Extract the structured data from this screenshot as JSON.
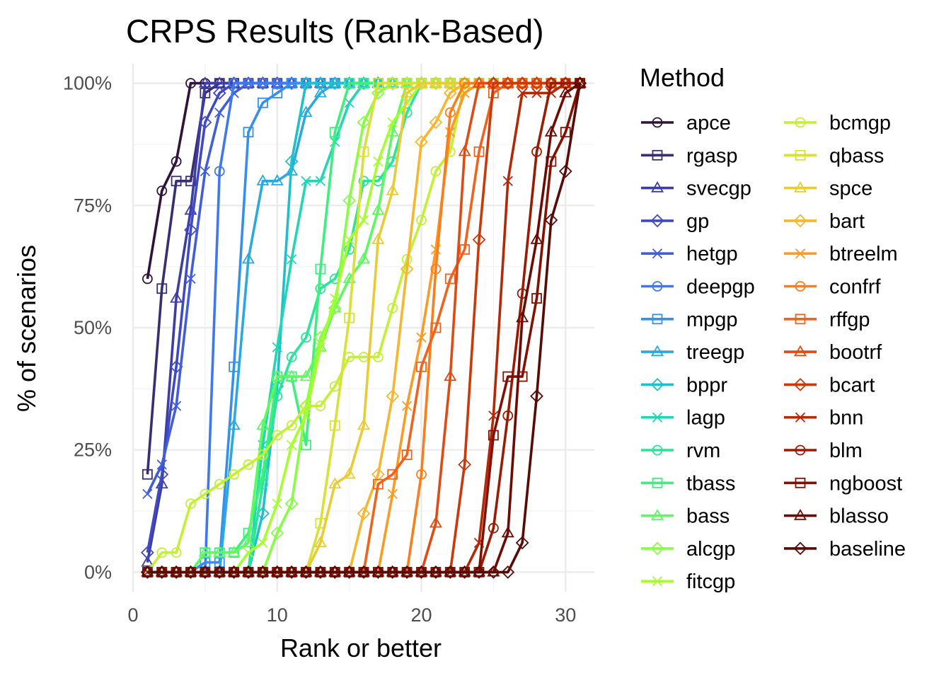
{
  "chart_data": {
    "type": "line",
    "title": "CRPS Results (Rank-Based)",
    "xlabel": "Rank or better",
    "ylabel": "% of scenarios",
    "xlim": [
      0,
      32
    ],
    "ylim": [
      -4,
      104
    ],
    "x_ticks": [
      0,
      10,
      20,
      30
    ],
    "x_tick_labels": [
      "0",
      "10",
      "20",
      "30"
    ],
    "y_ticks": [
      0,
      25,
      50,
      75,
      100
    ],
    "y_tick_labels": [
      "0%",
      "25%",
      "50%",
      "75%",
      "100%"
    ],
    "grid": true,
    "legend_title": "Method",
    "legend_position": "right",
    "x": [
      1,
      2,
      3,
      4,
      5,
      6,
      7,
      8,
      9,
      10,
      11,
      12,
      13,
      14,
      15,
      16,
      17,
      18,
      19,
      20,
      21,
      22,
      23,
      24,
      25,
      26,
      27,
      28,
      29,
      30,
      31
    ],
    "series": [
      {
        "name": "apce",
        "color": "#30123b",
        "marker": "circle",
        "values": [
          60,
          78,
          84,
          100,
          100,
          100,
          100,
          100,
          100,
          100,
          100,
          100,
          100,
          100,
          100,
          100,
          100,
          100,
          100,
          100,
          100,
          100,
          100,
          100,
          100,
          100,
          100,
          100,
          100,
          100,
          100
        ]
      },
      {
        "name": "rgasp",
        "color": "#382f73",
        "marker": "square",
        "values": [
          20,
          58,
          80,
          80,
          98,
          100,
          100,
          100,
          100,
          100,
          100,
          100,
          100,
          100,
          100,
          100,
          100,
          100,
          100,
          100,
          100,
          100,
          100,
          100,
          100,
          100,
          100,
          100,
          100,
          100,
          100
        ]
      },
      {
        "name": "svecgp",
        "color": "#3e3da5",
        "marker": "triangle",
        "values": [
          2,
          18,
          56,
          74,
          100,
          100,
          100,
          100,
          100,
          100,
          100,
          100,
          100,
          100,
          100,
          100,
          100,
          100,
          100,
          100,
          100,
          100,
          100,
          100,
          100,
          100,
          100,
          100,
          100,
          100,
          100
        ]
      },
      {
        "name": "gp",
        "color": "#3f49c3",
        "marker": "diamond",
        "values": [
          4,
          20,
          42,
          70,
          92,
          98,
          100,
          100,
          100,
          100,
          100,
          100,
          100,
          100,
          100,
          100,
          100,
          100,
          100,
          100,
          100,
          100,
          100,
          100,
          100,
          100,
          100,
          100,
          100,
          100,
          100
        ]
      },
      {
        "name": "hetgp",
        "color": "#3f5ddd",
        "marker": "x",
        "values": [
          16,
          22,
          34,
          60,
          82,
          94,
          98,
          100,
          100,
          100,
          100,
          100,
          100,
          100,
          100,
          100,
          100,
          100,
          100,
          100,
          100,
          100,
          100,
          100,
          100,
          100,
          100,
          100,
          100,
          100,
          100
        ]
      },
      {
        "name": "deepgp",
        "color": "#3e78ee",
        "marker": "circle",
        "values": [
          0,
          0,
          0,
          0,
          0,
          82,
          100,
          100,
          100,
          100,
          100,
          100,
          100,
          100,
          100,
          100,
          100,
          100,
          100,
          100,
          100,
          100,
          100,
          100,
          100,
          100,
          100,
          100,
          100,
          100,
          100
        ]
      },
      {
        "name": "mpgp",
        "color": "#348ff1",
        "marker": "square",
        "values": [
          0,
          0,
          0,
          0,
          2,
          2,
          42,
          90,
          96,
          98,
          100,
          100,
          100,
          100,
          100,
          100,
          100,
          100,
          100,
          100,
          100,
          100,
          100,
          100,
          100,
          100,
          100,
          100,
          100,
          100,
          100
        ]
      },
      {
        "name": "treegp",
        "color": "#28a9e0",
        "marker": "triangle",
        "values": [
          0,
          0,
          0,
          0,
          0,
          0,
          30,
          64,
          80,
          80,
          82,
          94,
          98,
          100,
          100,
          100,
          100,
          100,
          100,
          100,
          100,
          100,
          100,
          100,
          100,
          100,
          100,
          100,
          100,
          100,
          100
        ]
      },
      {
        "name": "bppr",
        "color": "#1fc0cb",
        "marker": "diamond",
        "values": [
          0,
          0,
          0,
          0,
          0,
          0,
          0,
          0,
          12,
          38,
          84,
          100,
          100,
          100,
          100,
          100,
          100,
          100,
          100,
          100,
          100,
          100,
          100,
          100,
          100,
          100,
          100,
          100,
          100,
          100,
          100
        ]
      },
      {
        "name": "lagp",
        "color": "#20d6b4",
        "marker": "x",
        "values": [
          0,
          0,
          0,
          0,
          0,
          0,
          0,
          0,
          26,
          46,
          64,
          80,
          80,
          88,
          96,
          100,
          100,
          100,
          100,
          100,
          100,
          100,
          100,
          100,
          100,
          100,
          100,
          100,
          100,
          100,
          100
        ]
      },
      {
        "name": "rvm",
        "color": "#26e69a",
        "marker": "circle",
        "values": [
          0,
          0,
          0,
          0,
          0,
          0,
          0,
          0,
          18,
          36,
          44,
          48,
          58,
          60,
          66,
          80,
          80,
          84,
          94,
          100,
          100,
          100,
          100,
          100,
          100,
          100,
          100,
          100,
          100,
          100,
          100
        ]
      },
      {
        "name": "tbass",
        "color": "#3cf07e",
        "marker": "square",
        "values": [
          0,
          0,
          0,
          0,
          4,
          4,
          4,
          8,
          20,
          40,
          40,
          26,
          62,
          90,
          100,
          100,
          100,
          100,
          100,
          100,
          100,
          100,
          100,
          100,
          100,
          100,
          100,
          100,
          100,
          100,
          100
        ]
      },
      {
        "name": "bass",
        "color": "#5cf95f",
        "marker": "triangle",
        "values": [
          0,
          0,
          0,
          0,
          4,
          4,
          4,
          6,
          30,
          40,
          40,
          40,
          46,
          54,
          60,
          64,
          74,
          90,
          100,
          100,
          100,
          100,
          100,
          100,
          100,
          100,
          100,
          100,
          100,
          100,
          100
        ]
      },
      {
        "name": "alcgp",
        "color": "#86fe43",
        "marker": "diamond",
        "values": [
          0,
          0,
          0,
          0,
          0,
          0,
          0,
          0,
          0,
          8,
          14,
          34,
          48,
          54,
          76,
          92,
          98,
          100,
          100,
          100,
          100,
          100,
          100,
          100,
          100,
          100,
          100,
          100,
          100,
          100,
          100
        ]
      },
      {
        "name": "fitcgp",
        "color": "#a6fd30",
        "marker": "x",
        "values": [
          0,
          0,
          0,
          0,
          0,
          0,
          0,
          4,
          6,
          14,
          26,
          32,
          46,
          56,
          68,
          72,
          84,
          92,
          96,
          100,
          100,
          100,
          100,
          100,
          100,
          100,
          100,
          100,
          100,
          100,
          100
        ]
      },
      {
        "name": "bcmgp",
        "color": "#c2f134",
        "marker": "circle",
        "values": [
          0,
          4,
          4,
          14,
          16,
          18,
          20,
          22,
          24,
          28,
          30,
          34,
          34,
          38,
          44,
          44,
          44,
          54,
          64,
          72,
          82,
          86,
          100,
          100,
          100,
          100,
          100,
          100,
          100,
          100,
          100
        ]
      },
      {
        "name": "qbass",
        "color": "#d8e136",
        "marker": "square",
        "values": [
          0,
          0,
          0,
          0,
          0,
          0,
          0,
          0,
          0,
          0,
          0,
          0,
          10,
          30,
          52,
          86,
          100,
          100,
          100,
          100,
          100,
          100,
          100,
          100,
          100,
          100,
          100,
          100,
          100,
          100,
          100
        ]
      },
      {
        "name": "spce",
        "color": "#e9cc35",
        "marker": "triangle",
        "values": [
          0,
          0,
          0,
          0,
          0,
          0,
          0,
          0,
          0,
          0,
          0,
          0,
          6,
          18,
          20,
          30,
          68,
          78,
          98,
          100,
          100,
          100,
          100,
          100,
          100,
          100,
          100,
          100,
          100,
          100,
          100
        ]
      },
      {
        "name": "bart",
        "color": "#f6b631",
        "marker": "diamond",
        "values": [
          0,
          0,
          0,
          0,
          0,
          0,
          0,
          0,
          0,
          0,
          0,
          0,
          0,
          0,
          0,
          12,
          20,
          36,
          62,
          88,
          92,
          98,
          100,
          100,
          100,
          100,
          100,
          100,
          100,
          100,
          100
        ]
      },
      {
        "name": "btreelm",
        "color": "#fd9a25",
        "marker": "x",
        "values": [
          0,
          0,
          0,
          0,
          0,
          0,
          0,
          0,
          0,
          0,
          0,
          0,
          0,
          0,
          0,
          0,
          0,
          16,
          34,
          48,
          66,
          90,
          98,
          100,
          100,
          100,
          100,
          100,
          100,
          100,
          100
        ]
      },
      {
        "name": "confrf",
        "color": "#fb7e1c",
        "marker": "circle",
        "values": [
          0,
          0,
          0,
          0,
          0,
          0,
          0,
          0,
          0,
          0,
          0,
          0,
          0,
          0,
          0,
          0,
          0,
          0,
          0,
          20,
          62,
          94,
          100,
          100,
          100,
          100,
          100,
          100,
          100,
          100,
          100
        ]
      },
      {
        "name": "rffgp",
        "color": "#f2621a",
        "marker": "square",
        "values": [
          0,
          0,
          0,
          0,
          0,
          0,
          0,
          0,
          0,
          0,
          0,
          0,
          0,
          0,
          0,
          0,
          18,
          20,
          24,
          42,
          50,
          60,
          66,
          86,
          98,
          100,
          100,
          100,
          100,
          100,
          100
        ]
      },
      {
        "name": "bootrf",
        "color": "#e14a12",
        "marker": "triangle",
        "values": [
          0,
          0,
          0,
          0,
          0,
          0,
          0,
          0,
          0,
          0,
          0,
          0,
          0,
          0,
          0,
          0,
          0,
          0,
          0,
          0,
          10,
          40,
          86,
          100,
          100,
          100,
          100,
          100,
          100,
          100,
          100
        ]
      },
      {
        "name": "bcart",
        "color": "#cd3809",
        "marker": "diamond",
        "values": [
          0,
          0,
          0,
          0,
          0,
          0,
          0,
          0,
          0,
          0,
          0,
          0,
          0,
          0,
          0,
          0,
          0,
          0,
          0,
          0,
          0,
          0,
          22,
          68,
          100,
          100,
          100,
          100,
          100,
          100,
          100
        ]
      },
      {
        "name": "bnn",
        "color": "#b52805",
        "marker": "x",
        "values": [
          0,
          0,
          0,
          0,
          0,
          0,
          0,
          0,
          0,
          0,
          0,
          0,
          0,
          0,
          0,
          0,
          0,
          0,
          0,
          0,
          0,
          0,
          0,
          6,
          32,
          80,
          98,
          98,
          98,
          100,
          100
        ]
      },
      {
        "name": "blm",
        "color": "#9b1b02",
        "marker": "circle",
        "values": [
          0,
          0,
          0,
          0,
          0,
          0,
          0,
          0,
          0,
          0,
          0,
          0,
          0,
          0,
          0,
          0,
          0,
          0,
          0,
          0,
          0,
          0,
          0,
          0,
          9,
          32,
          57,
          86,
          100,
          100,
          100
        ]
      },
      {
        "name": "ngboost",
        "color": "#841001",
        "marker": "square",
        "values": [
          0,
          0,
          0,
          0,
          0,
          0,
          0,
          0,
          0,
          0,
          0,
          0,
          0,
          0,
          0,
          0,
          0,
          0,
          0,
          0,
          0,
          0,
          0,
          0,
          28,
          40,
          40,
          56,
          84,
          90,
          100
        ]
      },
      {
        "name": "blasso",
        "color": "#6f0a02",
        "marker": "triangle",
        "values": [
          0,
          0,
          0,
          0,
          0,
          0,
          0,
          0,
          0,
          0,
          0,
          0,
          0,
          0,
          0,
          0,
          0,
          0,
          0,
          0,
          0,
          0,
          0,
          0,
          0,
          8,
          52,
          68,
          90,
          98,
          100
        ]
      },
      {
        "name": "baseline",
        "color": "#5a0a05",
        "marker": "diamond",
        "values": [
          0,
          0,
          0,
          0,
          0,
          0,
          0,
          0,
          0,
          0,
          0,
          0,
          0,
          0,
          0,
          0,
          0,
          0,
          0,
          0,
          0,
          0,
          0,
          0,
          0,
          0,
          6,
          36,
          72,
          82,
          100
        ]
      }
    ]
  }
}
